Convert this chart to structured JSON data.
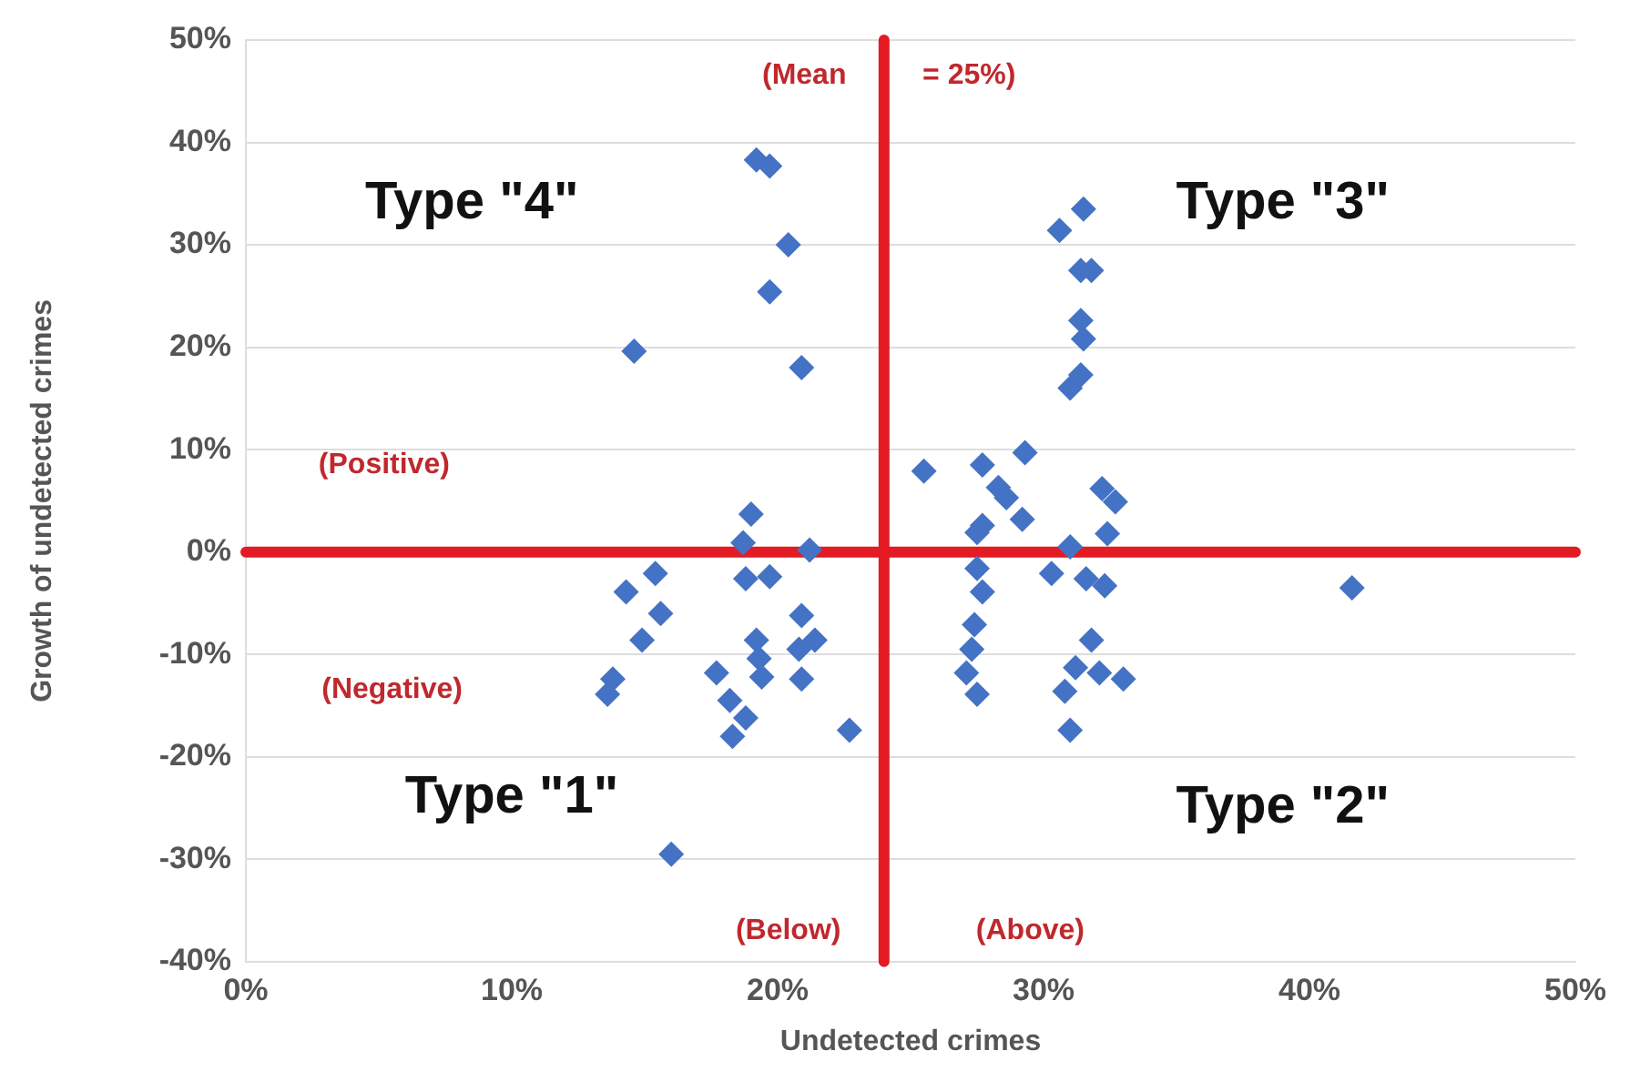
{
  "chart_data": {
    "type": "scatter",
    "xlabel": "Undetected crimes",
    "ylabel": "Growth of undetected crimes",
    "series": [
      {
        "color": "#4472c4",
        "x": [
          19.2,
          19.7,
          20.4,
          19.7,
          14.6,
          20.9,
          19.0,
          18.7,
          21.2,
          18.8,
          19.7,
          14.3,
          15.4,
          15.6,
          14.9,
          13.8,
          13.6,
          20.9,
          19.2,
          19.3,
          21.4,
          20.8,
          17.7,
          19.4,
          20.9,
          18.2,
          18.8,
          18.3,
          22.7,
          16.0,
          31.5,
          30.6,
          31.4,
          31.8,
          31.4,
          31.5,
          31.4,
          31.0,
          25.5,
          27.7,
          29.3,
          28.3,
          28.6,
          29.2,
          27.7,
          32.2,
          32.7,
          32.4,
          27.5,
          31.0,
          27.5,
          27.7,
          30.3,
          31.6,
          32.3,
          27.4,
          27.3,
          27.1,
          27.5,
          31.8,
          31.2,
          32.1,
          33.0,
          30.8,
          31.0,
          41.6
        ],
        "values": [
          38.3,
          37.7,
          30.0,
          25.4,
          19.6,
          18.0,
          3.7,
          0.9,
          0.2,
          -2.6,
          -2.4,
          -3.9,
          -2.1,
          -6.0,
          -8.6,
          -12.4,
          -13.9,
          -6.2,
          -8.6,
          -10.4,
          -8.6,
          -9.5,
          -11.8,
          -12.2,
          -12.4,
          -14.5,
          -16.2,
          -18.0,
          -17.4,
          -29.5,
          33.5,
          31.4,
          27.5,
          27.5,
          22.6,
          20.8,
          17.3,
          16.0,
          7.9,
          8.5,
          9.7,
          6.3,
          5.3,
          3.2,
          2.6,
          6.2,
          4.9,
          1.8,
          1.9,
          0.5,
          -1.6,
          -3.9,
          -2.1,
          -2.6,
          -3.3,
          -7.1,
          -9.5,
          -11.8,
          -13.9,
          -8.6,
          -11.3,
          -11.8,
          -12.4,
          -13.6,
          -17.4,
          -3.5
        ]
      }
    ],
    "xlim": [
      0,
      50
    ],
    "xticks": [
      {
        "value": 0,
        "label": "0%"
      },
      {
        "value": 10,
        "label": "10%"
      },
      {
        "value": 20,
        "label": "20%"
      },
      {
        "value": 30,
        "label": "30%"
      },
      {
        "value": 40,
        "label": "40%"
      },
      {
        "value": 50,
        "label": "50%"
      }
    ],
    "ylim": [
      -40,
      50
    ],
    "yticks": [
      {
        "value": -40,
        "label": "-40%"
      },
      {
        "value": -30,
        "label": "-30%"
      },
      {
        "value": -20,
        "label": "-20%"
      },
      {
        "value": -10,
        "label": "-10%"
      },
      {
        "value": 0,
        "label": "0%"
      },
      {
        "value": 10,
        "label": "10%"
      },
      {
        "value": 20,
        "label": "20%"
      },
      {
        "value": 30,
        "label": "30%"
      },
      {
        "value": 40,
        "label": "40%"
      },
      {
        "value": 50,
        "label": "50%"
      }
    ],
    "grid": "y",
    "marker": "diamond",
    "legend": false,
    "ref_lines": [
      {
        "axis": "x",
        "value": 24,
        "color": "#e31b23"
      },
      {
        "axis": "y",
        "value": 0,
        "color": "#e31b23"
      }
    ],
    "annotations": [
      "Type \"4\"",
      "Type \"3\"",
      "Type \"1\"",
      "Type \"2\"",
      "(Positive)",
      "(Negative)",
      "(Below)",
      "(Above)",
      "(Mean",
      "= 25%)"
    ]
  }
}
